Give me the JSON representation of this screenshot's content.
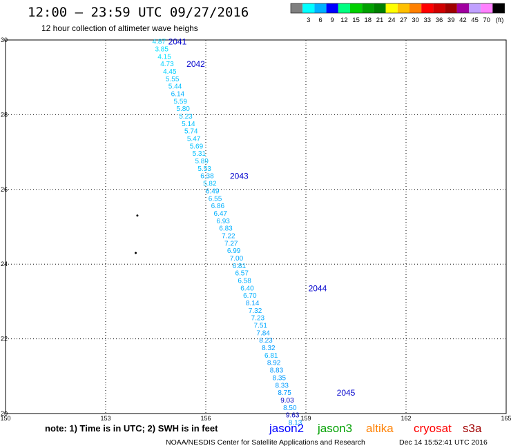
{
  "header": {
    "title": "12:00 — 23:59 UTC 09/27/2016",
    "subtitle": "12 hour collection of altimeter wave heighs"
  },
  "color_legend": {
    "unit": "(ft)",
    "swatches": [
      {
        "color": "#7f7f7f",
        "label": ""
      },
      {
        "color": "#00ffff",
        "label": "3"
      },
      {
        "color": "#00b0ff",
        "label": "6"
      },
      {
        "color": "#0000ff",
        "label": "9"
      },
      {
        "color": "#00ff80",
        "label": "12"
      },
      {
        "color": "#00d000",
        "label": "15"
      },
      {
        "color": "#00a000",
        "label": "18"
      },
      {
        "color": "#008000",
        "label": "21"
      },
      {
        "color": "#ffff00",
        "label": "24"
      },
      {
        "color": "#ffc000",
        "label": "27"
      },
      {
        "color": "#ff8000",
        "label": "30"
      },
      {
        "color": "#ff0000",
        "label": "33"
      },
      {
        "color": "#d00000",
        "label": "36"
      },
      {
        "color": "#a00000",
        "label": "39"
      },
      {
        "color": "#a000a0",
        "label": "42"
      },
      {
        "color": "#c0a0ff",
        "label": "45"
      },
      {
        "color": "#ff80ff",
        "label": "70"
      },
      {
        "color": "#000000",
        "label": ""
      }
    ]
  },
  "chart_data": {
    "type": "scatter",
    "xlim": [
      150,
      165
    ],
    "ylim": [
      20,
      30
    ],
    "x_ticks": [
      "150",
      "153",
      "156",
      "159",
      "162",
      "165"
    ],
    "y_ticks": [
      "20",
      "22",
      "24",
      "26",
      "28",
      "30"
    ],
    "grid": true,
    "points": [
      {
        "lon": 154.6,
        "lat": 29.97,
        "v": "4.87",
        "c": "#00d0ff"
      },
      {
        "lon": 154.68,
        "lat": 29.77,
        "v": "3.85",
        "c": "#00e0ff"
      },
      {
        "lon": 154.76,
        "lat": 29.57,
        "v": "4.15",
        "c": "#00e0ff"
      },
      {
        "lon": 154.84,
        "lat": 29.37,
        "v": "4.73",
        "c": "#00d0ff"
      },
      {
        "lon": 154.92,
        "lat": 29.17,
        "v": "4.45",
        "c": "#00d0ff"
      },
      {
        "lon": 155.0,
        "lat": 28.97,
        "v": "5.55",
        "c": "#00c0ff"
      },
      {
        "lon": 155.08,
        "lat": 28.77,
        "v": "5.44",
        "c": "#00c0ff"
      },
      {
        "lon": 155.16,
        "lat": 28.57,
        "v": "6.14",
        "c": "#00b0ff"
      },
      {
        "lon": 155.24,
        "lat": 28.37,
        "v": "5.59",
        "c": "#00c0ff"
      },
      {
        "lon": 155.32,
        "lat": 28.17,
        "v": "5.80",
        "c": "#00c0ff"
      },
      {
        "lon": 155.4,
        "lat": 27.97,
        "v": "5.23",
        "c": "#00c0ff"
      },
      {
        "lon": 155.48,
        "lat": 27.77,
        "v": "5.14",
        "c": "#00c0ff"
      },
      {
        "lon": 155.56,
        "lat": 27.57,
        "v": "5.74",
        "c": "#00c0ff"
      },
      {
        "lon": 155.64,
        "lat": 27.37,
        "v": "5.47",
        "c": "#00c0ff"
      },
      {
        "lon": 155.72,
        "lat": 27.17,
        "v": "5.69",
        "c": "#00c0ff"
      },
      {
        "lon": 155.8,
        "lat": 26.97,
        "v": "5.31",
        "c": "#00c0ff"
      },
      {
        "lon": 155.88,
        "lat": 26.77,
        "v": "5.89",
        "c": "#00c0ff"
      },
      {
        "lon": 155.96,
        "lat": 26.57,
        "v": "5.53",
        "c": "#00c0ff"
      },
      {
        "lon": 156.04,
        "lat": 26.37,
        "v": "6.38",
        "c": "#00b0ff"
      },
      {
        "lon": 156.12,
        "lat": 26.17,
        "v": "5.82",
        "c": "#00c0ff"
      },
      {
        "lon": 156.2,
        "lat": 25.97,
        "v": "6.49",
        "c": "#00b0ff"
      },
      {
        "lon": 156.28,
        "lat": 25.77,
        "v": "6.55",
        "c": "#00b0ff"
      },
      {
        "lon": 156.36,
        "lat": 25.57,
        "v": "6.86",
        "c": "#00b0ff"
      },
      {
        "lon": 156.44,
        "lat": 25.37,
        "v": "6.47",
        "c": "#00b0ff"
      },
      {
        "lon": 156.52,
        "lat": 25.17,
        "v": "6.93",
        "c": "#00b0ff"
      },
      {
        "lon": 156.6,
        "lat": 24.97,
        "v": "6.83",
        "c": "#00b0ff"
      },
      {
        "lon": 156.68,
        "lat": 24.77,
        "v": "7.22",
        "c": "#00a8ff"
      },
      {
        "lon": 156.76,
        "lat": 24.57,
        "v": "7.27",
        "c": "#00a8ff"
      },
      {
        "lon": 156.84,
        "lat": 24.37,
        "v": "6.99",
        "c": "#00b0ff"
      },
      {
        "lon": 156.92,
        "lat": 24.17,
        "v": "7.00",
        "c": "#00a8ff"
      },
      {
        "lon": 157.0,
        "lat": 23.97,
        "v": "6.81",
        "c": "#00b0ff"
      },
      {
        "lon": 157.08,
        "lat": 23.77,
        "v": "6.57",
        "c": "#00b0ff"
      },
      {
        "lon": 157.16,
        "lat": 23.57,
        "v": "6.58",
        "c": "#00b0ff"
      },
      {
        "lon": 157.24,
        "lat": 23.37,
        "v": "6.40",
        "c": "#00b0ff"
      },
      {
        "lon": 157.32,
        "lat": 23.17,
        "v": "6.70",
        "c": "#00b0ff"
      },
      {
        "lon": 157.4,
        "lat": 22.97,
        "v": "8.14",
        "c": "#009cff"
      },
      {
        "lon": 157.48,
        "lat": 22.77,
        "v": "7.32",
        "c": "#00a8ff"
      },
      {
        "lon": 157.56,
        "lat": 22.57,
        "v": "7.23",
        "c": "#00a8ff"
      },
      {
        "lon": 157.64,
        "lat": 22.37,
        "v": "7.51",
        "c": "#00a8ff"
      },
      {
        "lon": 157.72,
        "lat": 22.17,
        "v": "7.84",
        "c": "#00a0ff"
      },
      {
        "lon": 157.8,
        "lat": 21.97,
        "v": "8.23",
        "c": "#009cff"
      },
      {
        "lon": 157.88,
        "lat": 21.77,
        "v": "8.32",
        "c": "#009cff"
      },
      {
        "lon": 157.96,
        "lat": 21.57,
        "v": "6.81",
        "c": "#00b0ff"
      },
      {
        "lon": 158.04,
        "lat": 21.37,
        "v": "8.92",
        "c": "#0098ff"
      },
      {
        "lon": 158.12,
        "lat": 21.17,
        "v": "8.83",
        "c": "#0098ff"
      },
      {
        "lon": 158.2,
        "lat": 20.97,
        "v": "8.35",
        "c": "#009cff"
      },
      {
        "lon": 158.28,
        "lat": 20.77,
        "v": "8.33",
        "c": "#009cff"
      },
      {
        "lon": 158.36,
        "lat": 20.57,
        "v": "8.75",
        "c": "#0098ff"
      },
      {
        "lon": 158.44,
        "lat": 20.37,
        "v": "9.03",
        "c": "#0000c0"
      },
      {
        "lon": 158.52,
        "lat": 20.17,
        "v": "8.50",
        "c": "#009cff"
      },
      {
        "lon": 158.6,
        "lat": 19.97,
        "v": "9.63",
        "c": "#0000c0"
      },
      {
        "lon": 158.68,
        "lat": 19.77,
        "v": "8.13",
        "c": "#009cff"
      }
    ],
    "time_labels": [
      {
        "lon": 155.15,
        "lat": 29.97,
        "text": "2041"
      },
      {
        "lon": 155.7,
        "lat": 29.37,
        "text": "2042"
      },
      {
        "lon": 157.0,
        "lat": 26.37,
        "text": "2043"
      },
      {
        "lon": 159.35,
        "lat": 23.37,
        "text": "2044"
      },
      {
        "lon": 160.2,
        "lat": 20.57,
        "text": "2045"
      }
    ],
    "stray_dots": [
      {
        "lon": 153.95,
        "lat": 25.3
      },
      {
        "lon": 153.9,
        "lat": 24.3
      }
    ]
  },
  "footer": {
    "note": "note:  1) Time is in UTC;  2) SWH is in feet",
    "satellites": [
      {
        "label": "jason2",
        "color": "#0000ff"
      },
      {
        "label": "jason3",
        "color": "#00a000"
      },
      {
        "label": "altika",
        "color": "#ff8000"
      },
      {
        "label": "cryosat",
        "color": "#ff0000"
      },
      {
        "label": "s3a",
        "color": "#a00000"
      }
    ],
    "credit": "NOAA/NESDIS Center for Satellite Applications and Research",
    "timestamp": "Dec 14 15:52:41 UTC 2016"
  }
}
